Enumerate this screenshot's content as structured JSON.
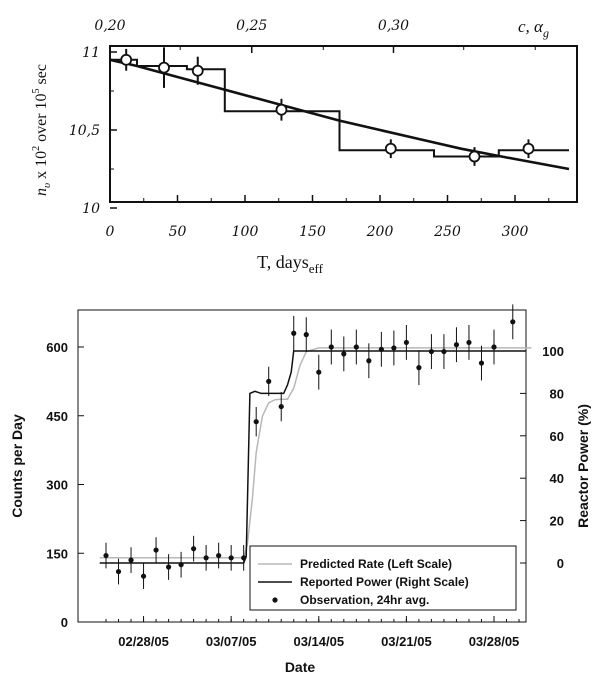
{
  "chart_data": [
    {
      "type": "line",
      "ylabel": "n_v × 10^2 over 10^5 sec",
      "ylabel_parts": {
        "n": "n",
        "sub": "υ",
        "mid": " x 10",
        "sup1": "2",
        "over": " over 10",
        "sup2": "5",
        "sec": " sec"
      },
      "xlabel": "T, days_eff",
      "xlabel_parts": {
        "main": "T, days",
        "sub": "eff"
      },
      "top_axis_label": "c, α_g",
      "top_axis_label_parts": {
        "c": "c, ",
        "alpha": "α",
        "sub": "g"
      },
      "x_ticks": [
        "0",
        "50",
        "100",
        "150",
        "200",
        "250",
        "300"
      ],
      "x_tick_values": [
        0,
        50,
        100,
        150,
        200,
        250,
        300
      ],
      "y_ticks": [
        "10",
        "10,5",
        "11"
      ],
      "y_tick_values": [
        10.0,
        10.5,
        11.0
      ],
      "top_ticks": [
        "0,20",
        "0,25",
        "0,30"
      ],
      "top_tick_x_values": [
        0,
        105,
        210
      ],
      "xlim": [
        0,
        340
      ],
      "ylim": [
        10.0,
        11.05
      ],
      "series": [
        {
          "kind": "points",
          "x": [
            12,
            40,
            65,
            127,
            208,
            270,
            310
          ],
          "y": [
            10.95,
            10.9,
            10.88,
            10.63,
            10.38,
            10.33,
            10.38
          ],
          "yerr": [
            0.07,
            0.13,
            0.09,
            0.07,
            0.06,
            0.06,
            0.06
          ]
        },
        {
          "kind": "step",
          "x": [
            0,
            20,
            20,
            57,
            57,
            85,
            85,
            170,
            170,
            240,
            240,
            288,
            288,
            340
          ],
          "y": [
            10.95,
            10.95,
            10.91,
            10.91,
            10.89,
            10.89,
            10.62,
            10.62,
            10.37,
            10.37,
            10.33,
            10.33,
            10.37,
            10.37
          ]
        },
        {
          "kind": "curve",
          "x": [
            0,
            20,
            50,
            80,
            110,
            140,
            170,
            200,
            230,
            260,
            290,
            340
          ],
          "y": [
            10.95,
            10.91,
            10.84,
            10.77,
            10.7,
            10.63,
            10.56,
            10.5,
            10.44,
            10.38,
            10.33,
            10.25
          ]
        }
      ]
    },
    {
      "type": "line",
      "xlabel": "Date",
      "ylabel": "Counts per Day",
      "y2label": "Reactor Power (%)",
      "x_tick_labels": [
        "02/28/05",
        "03/07/05",
        "03/14/05",
        "03/21/05",
        "03/28/05"
      ],
      "x_tick_values": [
        0,
        7,
        14,
        21,
        28
      ],
      "y_ticks": [
        "0",
        "150",
        "300",
        "450",
        "600"
      ],
      "y_tick_values": [
        0,
        150,
        300,
        450,
        600
      ],
      "y2_ticks": [
        "0",
        "20",
        "40",
        "60",
        "80",
        "100"
      ],
      "y2_tick_values": [
        0,
        20,
        40,
        60,
        80,
        100
      ],
      "xlim": [
        -3.5,
        31
      ],
      "ylim": [
        0,
        680
      ],
      "y2lim": [
        -27,
        126
      ],
      "legend_position": "bottom-right",
      "series": [
        {
          "name": "Predicted Rate (Left Scale)",
          "kind": "line",
          "color": "#b8b8b8",
          "x": [
            -3.5,
            8,
            8.3,
            8.7,
            9.0,
            9.5,
            10,
            10.5,
            11,
            11.5,
            12,
            12.5,
            13,
            14,
            31
          ],
          "y": [
            140,
            140,
            170,
            270,
            370,
            450,
            478,
            485,
            486,
            486,
            510,
            560,
            590,
            598,
            598
          ]
        },
        {
          "name": "Reported Power (Right Scale)",
          "kind": "line",
          "color": "#111111",
          "x": [
            -3.5,
            8,
            8.2,
            8.5,
            8.9,
            9.4,
            11.2,
            11.5,
            11.8,
            12,
            31
          ],
          "y": [
            0,
            0,
            3,
            80,
            81,
            80,
            80,
            84,
            90,
            100,
            100
          ]
        },
        {
          "name": "Observation, 24hr avg.",
          "kind": "points",
          "color": "#111111",
          "x": [
            -3,
            -2,
            -1,
            0,
            1,
            2,
            3,
            4,
            5,
            6,
            7,
            8,
            9,
            10,
            11,
            12,
            13,
            14,
            15,
            16,
            17,
            18,
            19,
            20,
            21,
            22,
            23,
            24,
            25,
            26,
            27,
            28,
            29.5
          ],
          "y": [
            145,
            110,
            135,
            100,
            157,
            120,
            125,
            160,
            140,
            145,
            140,
            140,
            437,
            525,
            470,
            630,
            627,
            545,
            600,
            585,
            600,
            570,
            595,
            598,
            610,
            555,
            590,
            590,
            605,
            610,
            565,
            600,
            655
          ],
          "yerr": [
            28,
            28,
            28,
            28,
            28,
            28,
            28,
            28,
            28,
            28,
            28,
            28,
            32,
            32,
            32,
            38,
            38,
            38,
            38,
            38,
            38,
            38,
            38,
            38,
            38,
            38,
            38,
            38,
            38,
            38,
            38,
            38,
            38
          ]
        }
      ]
    }
  ]
}
